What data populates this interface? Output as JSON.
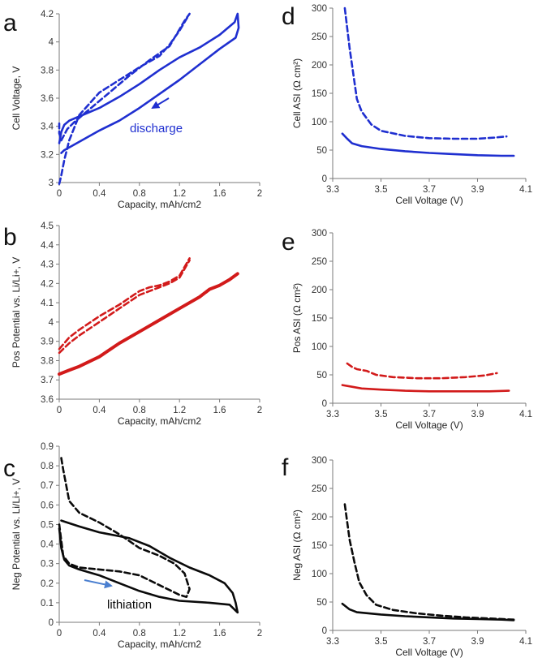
{
  "colors": {
    "blue": "#1f2fd0",
    "red": "#d21a1a",
    "black": "#0a0a0a",
    "arrow_black_panel": "#4a7fd0"
  },
  "chart_data": [
    {
      "id": "a",
      "label": "a",
      "type": "line",
      "xlabel": "Capacity, mAh/cm2",
      "ylabel": "Cell Voltage, V",
      "xlim": [
        0,
        2
      ],
      "ylim": [
        3.0,
        4.2
      ],
      "xticks": [
        "0",
        "0.4",
        "0.8",
        "1.2",
        "1.6",
        "2"
      ],
      "yticks": [
        "3",
        "3.2",
        "3.4",
        "3.6",
        "3.8",
        "4",
        "4.2"
      ],
      "annotation": "discharge",
      "series": [
        {
          "name": "solid",
          "style": "solid",
          "color": "blue",
          "points": [
            [
              0.0,
              3.28
            ],
            [
              0.02,
              3.36
            ],
            [
              0.05,
              3.41
            ],
            [
              0.1,
              3.44
            ],
            [
              0.2,
              3.47
            ],
            [
              0.4,
              3.53
            ],
            [
              0.6,
              3.61
            ],
            [
              0.8,
              3.7
            ],
            [
              1.0,
              3.8
            ],
            [
              1.2,
              3.89
            ],
            [
              1.4,
              3.96
            ],
            [
              1.6,
              4.05
            ],
            [
              1.75,
              4.14
            ],
            [
              1.78,
              4.2
            ],
            [
              1.79,
              4.1
            ],
            [
              1.76,
              4.03
            ],
            [
              1.6,
              3.95
            ],
            [
              1.4,
              3.84
            ],
            [
              1.2,
              3.73
            ],
            [
              1.0,
              3.63
            ],
            [
              0.8,
              3.53
            ],
            [
              0.6,
              3.44
            ],
            [
              0.4,
              3.37
            ],
            [
              0.2,
              3.29
            ],
            [
              0.05,
              3.23
            ],
            [
              0.02,
              3.21
            ]
          ]
        },
        {
          "name": "dashed",
          "style": "dashed",
          "color": "blue",
          "points": [
            [
              0.0,
              2.99
            ],
            [
              0.02,
              3.05
            ],
            [
              0.05,
              3.16
            ],
            [
              0.1,
              3.3
            ],
            [
              0.2,
              3.48
            ],
            [
              0.4,
              3.64
            ],
            [
              0.6,
              3.73
            ],
            [
              0.8,
              3.82
            ],
            [
              1.0,
              3.9
            ],
            [
              1.1,
              3.98
            ],
            [
              1.2,
              4.08
            ],
            [
              1.3,
              4.2
            ],
            [
              1.25,
              4.15
            ],
            [
              1.1,
              3.97
            ],
            [
              0.9,
              3.87
            ],
            [
              0.7,
              3.76
            ],
            [
              0.5,
              3.64
            ],
            [
              0.3,
              3.52
            ],
            [
              0.15,
              3.43
            ],
            [
              0.08,
              3.38
            ],
            [
              0.05,
              3.34
            ],
            [
              0.02,
              3.3
            ],
            [
              0.0,
              3.35
            ],
            [
              0.0,
              3.42
            ]
          ]
        }
      ]
    },
    {
      "id": "b",
      "label": "b",
      "type": "line",
      "xlabel": "Capacity, mAh/cm2",
      "ylabel": "Pos Potential vs. Li/Li+, V",
      "xlim": [
        0,
        2
      ],
      "ylim": [
        3.6,
        4.5
      ],
      "xticks": [
        "0",
        "0.4",
        "0.8",
        "1.2",
        "1.6",
        "2"
      ],
      "yticks": [
        "3.6",
        "3.7",
        "3.8",
        "3.9",
        "4",
        "4.1",
        "4.2",
        "4.3",
        "4.4",
        "4.5"
      ],
      "series": [
        {
          "name": "solid",
          "style": "solid",
          "color": "red",
          "points": [
            [
              0.0,
              3.73
            ],
            [
              0.1,
              3.75
            ],
            [
              0.2,
              3.77
            ],
            [
              0.4,
              3.82
            ],
            [
              0.6,
              3.89
            ],
            [
              0.8,
              3.95
            ],
            [
              1.0,
              4.01
            ],
            [
              1.2,
              4.07
            ],
            [
              1.4,
              4.13
            ],
            [
              1.5,
              4.17
            ],
            [
              1.6,
              4.19
            ],
            [
              1.7,
              4.22
            ],
            [
              1.78,
              4.25
            ]
          ]
        },
        {
          "name": "dashed-upper",
          "style": "dashed",
          "color": "red",
          "points": [
            [
              0.0,
              3.86
            ],
            [
              0.1,
              3.92
            ],
            [
              0.2,
              3.96
            ],
            [
              0.4,
              4.03
            ],
            [
              0.6,
              4.09
            ],
            [
              0.8,
              4.16
            ],
            [
              0.9,
              4.18
            ],
            [
              1.0,
              4.19
            ],
            [
              1.1,
              4.21
            ],
            [
              1.2,
              4.24
            ],
            [
              1.3,
              4.33
            ]
          ]
        },
        {
          "name": "dashed-lower",
          "style": "dashed",
          "color": "red",
          "points": [
            [
              0.0,
              3.84
            ],
            [
              0.1,
              3.89
            ],
            [
              0.2,
              3.93
            ],
            [
              0.4,
              4.0
            ],
            [
              0.6,
              4.07
            ],
            [
              0.8,
              4.14
            ],
            [
              0.9,
              4.16
            ],
            [
              1.0,
              4.18
            ],
            [
              1.1,
              4.2
            ],
            [
              1.2,
              4.23
            ],
            [
              1.3,
              4.32
            ]
          ]
        }
      ]
    },
    {
      "id": "c",
      "label": "c",
      "type": "line",
      "xlabel": "Capacity, mAh/cm2",
      "ylabel": "Neg Potential vs. Li/Li+, V",
      "xlim": [
        0,
        2
      ],
      "ylim": [
        0,
        0.9
      ],
      "xticks": [
        "0",
        "0.4",
        "0.8",
        "1.2",
        "1.6",
        "2"
      ],
      "yticks": [
        "0",
        "0.1",
        "0.2",
        "0.3",
        "0.4",
        "0.5",
        "0.6",
        "0.7",
        "0.8",
        "0.9"
      ],
      "annotation": "lithiation",
      "series": [
        {
          "name": "solid",
          "style": "solid",
          "color": "black",
          "points": [
            [
              0.02,
              0.52
            ],
            [
              0.2,
              0.49
            ],
            [
              0.4,
              0.46
            ],
            [
              0.6,
              0.44
            ],
            [
              0.7,
              0.43
            ],
            [
              0.9,
              0.39
            ],
            [
              1.1,
              0.33
            ],
            [
              1.3,
              0.28
            ],
            [
              1.5,
              0.24
            ],
            [
              1.65,
              0.2
            ],
            [
              1.73,
              0.15
            ],
            [
              1.76,
              0.1
            ],
            [
              1.78,
              0.05
            ],
            [
              1.7,
              0.09
            ],
            [
              1.5,
              0.1
            ],
            [
              1.2,
              0.11
            ],
            [
              1.0,
              0.13
            ],
            [
              0.8,
              0.16
            ],
            [
              0.6,
              0.2
            ],
            [
              0.4,
              0.24
            ],
            [
              0.2,
              0.27
            ],
            [
              0.1,
              0.29
            ],
            [
              0.05,
              0.32
            ],
            [
              0.02,
              0.38
            ],
            [
              0.0,
              0.48
            ]
          ]
        },
        {
          "name": "dashed",
          "style": "dashed",
          "color": "black",
          "points": [
            [
              0.02,
              0.84
            ],
            [
              0.04,
              0.78
            ],
            [
              0.1,
              0.62
            ],
            [
              0.2,
              0.56
            ],
            [
              0.4,
              0.51
            ],
            [
              0.6,
              0.45
            ],
            [
              0.8,
              0.38
            ],
            [
              1.0,
              0.34
            ],
            [
              1.15,
              0.3
            ],
            [
              1.25,
              0.25
            ],
            [
              1.3,
              0.17
            ],
            [
              1.27,
              0.13
            ],
            [
              1.2,
              0.14
            ],
            [
              1.0,
              0.19
            ],
            [
              0.8,
              0.24
            ],
            [
              0.6,
              0.26
            ],
            [
              0.4,
              0.27
            ],
            [
              0.2,
              0.28
            ],
            [
              0.1,
              0.3
            ],
            [
              0.04,
              0.34
            ],
            [
              0.0,
              0.5
            ]
          ]
        }
      ]
    },
    {
      "id": "d",
      "label": "d",
      "type": "line",
      "xlabel": "Cell Voltage (V)",
      "ylabel": "Cell ASI (Ω cm²)",
      "xlim": [
        3.3,
        4.1
      ],
      "ylim": [
        0,
        300
      ],
      "xticks": [
        "3.3",
        "3.5",
        "3.7",
        "3.9",
        "4.1"
      ],
      "yticks": [
        "0",
        "50",
        "100",
        "150",
        "200",
        "250",
        "300"
      ],
      "series": [
        {
          "name": "dashed",
          "style": "dashed",
          "color": "blue",
          "points": [
            [
              3.35,
              300
            ],
            [
              3.37,
              230
            ],
            [
              3.39,
              170
            ],
            [
              3.4,
              140
            ],
            [
              3.42,
              118
            ],
            [
              3.46,
              95
            ],
            [
              3.5,
              84
            ],
            [
              3.6,
              75
            ],
            [
              3.7,
              71
            ],
            [
              3.8,
              70
            ],
            [
              3.9,
              70
            ],
            [
              3.97,
              72
            ],
            [
              4.02,
              74
            ]
          ]
        },
        {
          "name": "solid",
          "style": "solid",
          "color": "blue",
          "points": [
            [
              3.34,
              79
            ],
            [
              3.36,
              70
            ],
            [
              3.38,
              62
            ],
            [
              3.42,
              57
            ],
            [
              3.5,
              52
            ],
            [
              3.6,
              48
            ],
            [
              3.7,
              45
            ],
            [
              3.8,
              43
            ],
            [
              3.9,
              41
            ],
            [
              4.0,
              40
            ],
            [
              4.05,
              40
            ]
          ]
        }
      ]
    },
    {
      "id": "e",
      "label": "e",
      "type": "line",
      "xlabel": "Cell Voltage (V)",
      "ylabel": "Pos ASI (Ω cm²)",
      "xlim": [
        3.3,
        4.1
      ],
      "ylim": [
        0,
        300
      ],
      "xticks": [
        "3.3",
        "3.5",
        "3.7",
        "3.9",
        "4.1"
      ],
      "yticks": [
        "0",
        "50",
        "100",
        "150",
        "200",
        "250",
        "300"
      ],
      "series": [
        {
          "name": "dashed",
          "style": "dashed",
          "color": "red",
          "points": [
            [
              3.36,
              70
            ],
            [
              3.38,
              64
            ],
            [
              3.4,
              60
            ],
            [
              3.44,
              57
            ],
            [
              3.48,
              50
            ],
            [
              3.55,
              46
            ],
            [
              3.65,
              44
            ],
            [
              3.75,
              44
            ],
            [
              3.85,
              46
            ],
            [
              3.93,
              49
            ],
            [
              3.98,
              53
            ]
          ]
        },
        {
          "name": "solid",
          "style": "solid",
          "color": "red",
          "points": [
            [
              3.34,
              32
            ],
            [
              3.38,
              29
            ],
            [
              3.42,
              26
            ],
            [
              3.5,
              24
            ],
            [
              3.6,
              22
            ],
            [
              3.7,
              21
            ],
            [
              3.8,
              21
            ],
            [
              3.9,
              21
            ],
            [
              3.95,
              21
            ],
            [
              4.03,
              22
            ]
          ]
        }
      ]
    },
    {
      "id": "f",
      "label": "f",
      "type": "line",
      "xlabel": "Cell Voltage (V)",
      "ylabel": "Neg ASI (Ω cm²)",
      "xlim": [
        3.3,
        4.1
      ],
      "ylim": [
        0,
        300
      ],
      "xticks": [
        "3.3",
        "3.5",
        "3.7",
        "3.9",
        "4.1"
      ],
      "yticks": [
        "0",
        "50",
        "100",
        "150",
        "200",
        "250",
        "300"
      ],
      "series": [
        {
          "name": "dashed",
          "style": "dashed",
          "color": "black",
          "points": [
            [
              3.35,
              222
            ],
            [
              3.37,
              160
            ],
            [
              3.39,
              120
            ],
            [
              3.41,
              85
            ],
            [
              3.44,
              62
            ],
            [
              3.48,
              45
            ],
            [
              3.55,
              36
            ],
            [
              3.65,
              30
            ],
            [
              3.75,
              26
            ],
            [
              3.85,
              23
            ],
            [
              3.95,
              21
            ],
            [
              4.05,
              19
            ]
          ]
        },
        {
          "name": "solid",
          "style": "solid",
          "color": "black",
          "points": [
            [
              3.34,
              47
            ],
            [
              3.37,
              37
            ],
            [
              3.4,
              32
            ],
            [
              3.5,
              28
            ],
            [
              3.6,
              25
            ],
            [
              3.7,
              23
            ],
            [
              3.8,
              21
            ],
            [
              3.9,
              20
            ],
            [
              4.0,
              19
            ],
            [
              4.05,
              18
            ]
          ]
        }
      ]
    }
  ]
}
